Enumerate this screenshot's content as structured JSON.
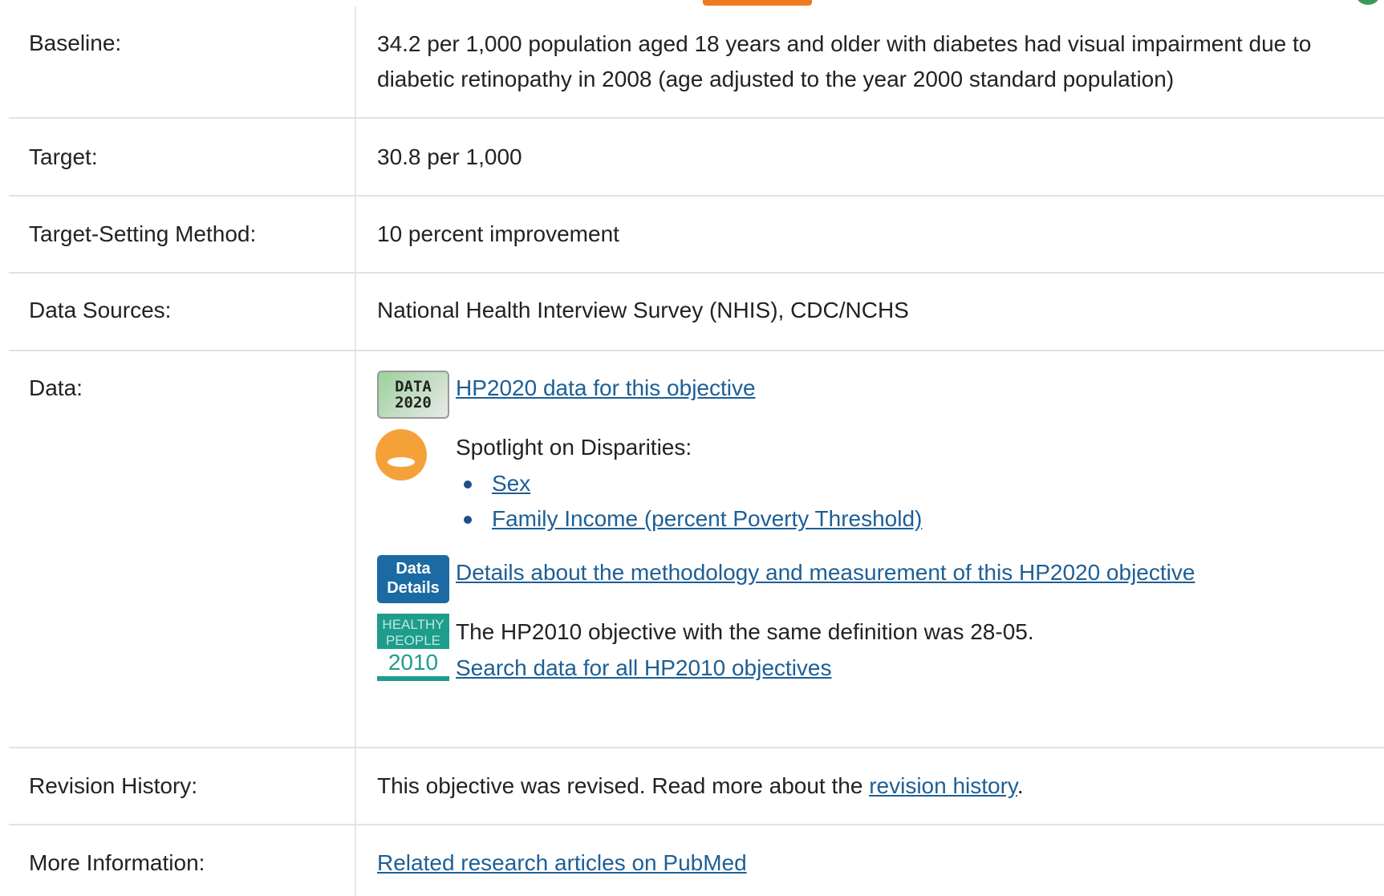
{
  "rows": [
    {
      "label": "Baseline:",
      "value": "34.2 per 1,000 population aged 18 years and older with diabetes had visual impairment due to diabetic retinopathy in 2008 (age adjusted to the year 2000 standard population)"
    },
    {
      "label": "Target:",
      "value": "30.8 per 1,000"
    },
    {
      "label": "Target-Setting Method:",
      "value": "10 percent improvement"
    },
    {
      "label": "Data Sources:",
      "value": "National Health Interview Survey (NHIS), CDC/NCHS"
    },
    {
      "label": "Data:",
      "data_link": {
        "icon": [
          "DATA",
          "2020"
        ],
        "text": "HP2020 data for this objective"
      },
      "spotlight": {
        "title": "Spotlight on Disparities:",
        "items": [
          "Sex",
          "Family Income (percent Poverty Threshold)"
        ]
      },
      "details": {
        "icon": [
          "Data",
          "Details"
        ],
        "text": "Details about the methodology and measurement of this HP2020 objective"
      },
      "hp2010": {
        "icon": [
          "HEALTHY",
          "PEOPLE",
          "2010"
        ],
        "text": "The HP2010 objective with the same definition was 28-05.",
        "link": "Search data for all HP2010 objectives"
      }
    },
    {
      "label": "Revision History:",
      "value": "This objective was revised. Read more about the ",
      "link": "revision history",
      "end": "."
    },
    {
      "label": "More Information:",
      "link": "Related research articles on PubMed"
    }
  ]
}
